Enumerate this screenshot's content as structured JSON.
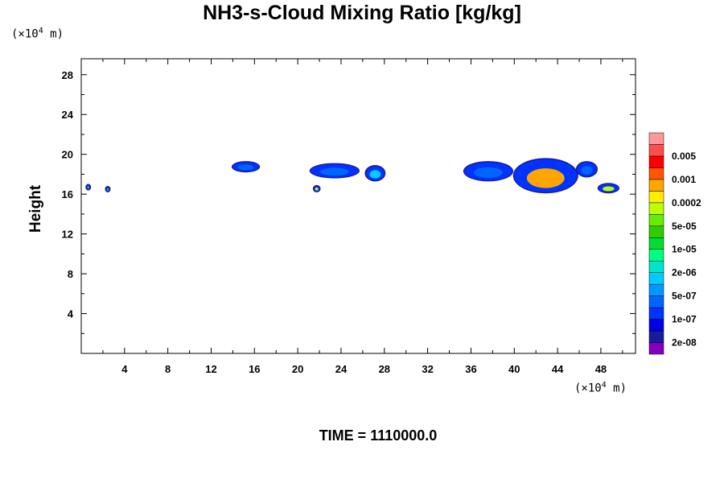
{
  "chart_data": {
    "type": "heatmap",
    "title": "NH3-s-Cloud Mixing Ratio [kg/kg]",
    "ylabel": "Height",
    "x_unit": "(×10",
    "x_unit_exp": "4",
    "x_unit_tail": " m)",
    "y_unit": "(×10",
    "y_unit_exp": "4",
    "y_unit_tail": " m)",
    "xlim": [
      0,
      51.2
    ],
    "ylim": [
      0,
      29.6
    ],
    "x_ticks": [
      "4",
      "8",
      "12",
      "16",
      "20",
      "24",
      "28",
      "32",
      "36",
      "40",
      "44",
      "48"
    ],
    "y_ticks": [
      "4",
      "8",
      "12",
      "16",
      "20",
      "24",
      "28"
    ],
    "colorbar": {
      "colors": [
        "#7f00bf",
        "#1a1a9e",
        "#0000e6",
        "#0033ff",
        "#0066ff",
        "#0099ff",
        "#00ccff",
        "#00e6cc",
        "#00ff80",
        "#00dd33",
        "#33cc00",
        "#66ee00",
        "#bbff00",
        "#ffee00",
        "#ffa500",
        "#ff5500",
        "#ff0000",
        "#ff4d4d",
        "#ff9999"
      ],
      "labels": [
        "2e-08",
        "1e-07",
        "5e-07",
        "2e-06",
        "1e-05",
        "5e-05",
        "0.0002",
        "0.001",
        "0.005"
      ]
    },
    "cloud_features": [
      {
        "x": [
          14.0,
          16.4
        ],
        "y": [
          18.3,
          19.2
        ],
        "level": "1e-07"
      },
      {
        "x": [
          21.2,
          25.6
        ],
        "y": [
          17.7,
          19.0
        ],
        "level": "1e-07"
      },
      {
        "x": [
          26.3,
          28.0
        ],
        "y": [
          17.4,
          18.8
        ],
        "level": "5e-07"
      },
      {
        "x": [
          35.4,
          39.8
        ],
        "y": [
          17.4,
          19.2
        ],
        "level": "1e-07"
      },
      {
        "x": [
          40.0,
          45.8
        ],
        "y": [
          16.2,
          19.5
        ],
        "level": "0.0002"
      },
      {
        "x": [
          45.8,
          47.6
        ],
        "y": [
          17.8,
          19.2
        ],
        "level": "1e-07"
      },
      {
        "x": [
          47.8,
          49.6
        ],
        "y": [
          16.2,
          17.0
        ],
        "level": "5e-05"
      },
      {
        "x": [
          0.5,
          0.8
        ],
        "y": [
          16.5,
          16.9
        ],
        "level": "1e-05"
      },
      {
        "x": [
          2.3,
          2.6
        ],
        "y": [
          16.3,
          16.7
        ],
        "level": "1e-05"
      },
      {
        "x": [
          21.5,
          22.0
        ],
        "y": [
          16.3,
          16.8
        ],
        "level": "5e-05"
      }
    ]
  },
  "time_label": "TIME = 1110000.0"
}
